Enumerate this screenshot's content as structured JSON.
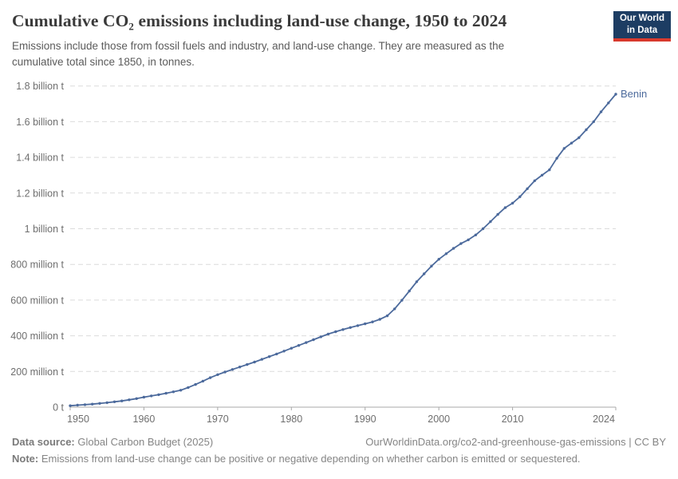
{
  "header": {
    "title": "Cumulative CO₂ emissions including land-use change, 1950 to 2024",
    "subtitle": "Emissions include those from fossil fuels and industry, and land-use change. They are measured as the cumulative total since 1850, in tonnes.",
    "logo": {
      "line1": "Our World",
      "line2": "in Data",
      "bg_color": "#1d3d63",
      "bar_color": "#d93a2d"
    }
  },
  "chart_data": {
    "type": "line",
    "title": "Cumulative CO₂ emissions including land-use change, 1950 to 2024",
    "xlabel": "",
    "ylabel": "",
    "unit": "million tonnes",
    "xlim": [
      1950,
      2024
    ],
    "ylim": [
      0,
      1800
    ],
    "grid": "horizontal dashed",
    "legend_position": "line-end",
    "x_ticks": [
      1950,
      1960,
      1970,
      1980,
      1990,
      2000,
      2010,
      2024
    ],
    "y_ticks": [
      {
        "value": 0,
        "label": "0 t"
      },
      {
        "value": 200,
        "label": "200 million t"
      },
      {
        "value": 400,
        "label": "400 million t"
      },
      {
        "value": 600,
        "label": "600 million t"
      },
      {
        "value": 800,
        "label": "800 million t"
      },
      {
        "value": 1000,
        "label": "1 billion t"
      },
      {
        "value": 1200,
        "label": "1.2 billion t"
      },
      {
        "value": 1400,
        "label": "1.4 billion t"
      },
      {
        "value": 1600,
        "label": "1.6 billion t"
      },
      {
        "value": 1800,
        "label": "1.8 billion t"
      }
    ],
    "series": [
      {
        "name": "Benin",
        "color": "#4c6a9c",
        "x": [
          1950,
          1951,
          1952,
          1953,
          1954,
          1955,
          1956,
          1957,
          1958,
          1959,
          1960,
          1961,
          1962,
          1963,
          1964,
          1965,
          1966,
          1967,
          1968,
          1969,
          1970,
          1971,
          1972,
          1973,
          1974,
          1975,
          1976,
          1977,
          1978,
          1979,
          1980,
          1981,
          1982,
          1983,
          1984,
          1985,
          1986,
          1987,
          1988,
          1989,
          1990,
          1991,
          1992,
          1993,
          1994,
          1995,
          1996,
          1997,
          1998,
          1999,
          2000,
          2001,
          2002,
          2003,
          2004,
          2005,
          2006,
          2007,
          2008,
          2009,
          2010,
          2011,
          2012,
          2013,
          2014,
          2015,
          2016,
          2017,
          2018,
          2019,
          2020,
          2021,
          2022,
          2023,
          2024
        ],
        "values": [
          8,
          11,
          14,
          17,
          21,
          25,
          30,
          35,
          41,
          48,
          56,
          63,
          70,
          78,
          86,
          95,
          110,
          127,
          146,
          165,
          182,
          197,
          211,
          225,
          239,
          253,
          268,
          283,
          298,
          314,
          330,
          346,
          362,
          378,
          394,
          410,
          423,
          435,
          446,
          457,
          467,
          478,
          492,
          512,
          551,
          599,
          651,
          703,
          747,
          790,
          829,
          860,
          890,
          917,
          938,
          965,
          1000,
          1040,
          1080,
          1118,
          1143,
          1179,
          1224,
          1269,
          1300,
          1330,
          1395,
          1450,
          1480,
          1510,
          1555,
          1600,
          1655,
          1705,
          1754
        ]
      }
    ],
    "colors": {
      "line": "#4c6a9c",
      "gridline": "#dcdcdc",
      "axis_line": "#a8a8a8",
      "tick_text": "#6e6e6e"
    }
  },
  "footer": {
    "source_label": "Data source:",
    "source_text": "Global Carbon Budget (2025)",
    "link_text": "OurWorldinData.org/co2-and-greenhouse-gas-emissions | CC BY",
    "note_label": "Note:",
    "note_text": "Emissions from land-use change can be positive or negative depending on whether carbon is emitted or sequestered."
  }
}
